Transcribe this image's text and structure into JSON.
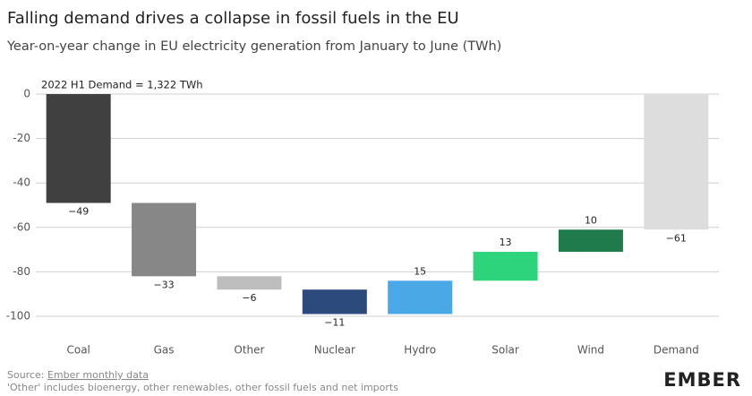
{
  "chart_data": {
    "type": "waterfall",
    "title": "Falling demand drives a collapse in fossil fuels in the EU",
    "subtitle": "Year-on-year change in EU electricity generation from January to June (TWh)",
    "annotation": "2022 H1 Demand = 1,322 TWh",
    "categories": [
      "Coal",
      "Gas",
      "Other",
      "Nuclear",
      "Hydro",
      "Solar",
      "Wind",
      "Demand"
    ],
    "values": [
      -49,
      -33,
      -6,
      -11,
      15,
      13,
      10,
      -61
    ],
    "value_labels": [
      "−49",
      "−33",
      "−6",
      "−11",
      "15",
      "13",
      "10",
      "−61"
    ],
    "colors": [
      "#404040",
      "#878787",
      "#bdbdbd",
      "#2c4a7c",
      "#4aa8e6",
      "#2ed47c",
      "#1f7a4c",
      "#dddddd"
    ],
    "total_categories": [
      "Demand"
    ],
    "ylim": [
      -105,
      0
    ],
    "yticks": [
      0,
      -20,
      -40,
      -60,
      -80,
      -100
    ],
    "grid": true,
    "source_prefix": "Source: ",
    "source_link": "Ember monthly data",
    "footnote": "'Other' includes bioenergy, other renewables, other fossil fuels and net imports",
    "logo": "EMBER"
  }
}
